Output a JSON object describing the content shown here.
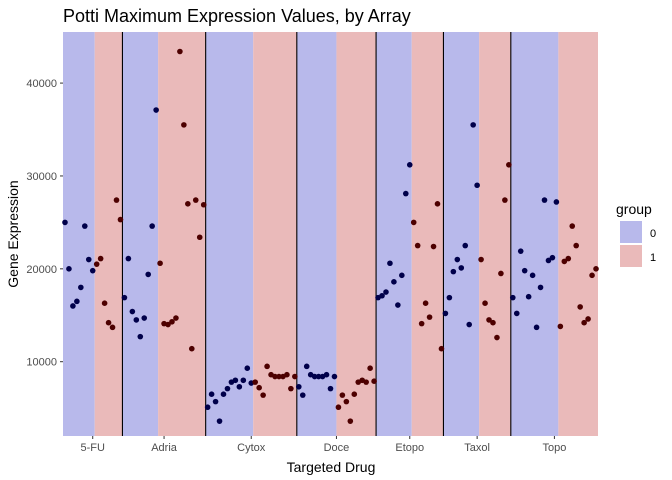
{
  "chart_data": {
    "type": "scatter",
    "title": "Potti Maximum Expression Values, by Array",
    "xlabel": "Targeted Drug",
    "ylabel": "Gene Expression",
    "ylim": [
      2000,
      45500
    ],
    "yticks": [
      10000,
      20000,
      30000,
      40000
    ],
    "grid": false,
    "legend": {
      "title": "group",
      "position": "right",
      "entries": [
        "0",
        "1"
      ]
    },
    "colors": {
      "group0_band": "#b8b9eb",
      "group1_band": "#eababa",
      "group0_point": "#00004a",
      "group1_point": "#4d0000",
      "separator": "#000000"
    },
    "categories": [
      {
        "name": "5-FU",
        "group0": [
          25000,
          20000,
          16000,
          16500,
          18000,
          24600,
          21000,
          19800
        ],
        "group1": [
          20500,
          21100,
          16300,
          14200,
          13700,
          27400,
          25300
        ]
      },
      {
        "name": "Adria",
        "group0": [
          16900,
          21100,
          15400,
          14500,
          12700,
          14700,
          19400,
          24600,
          37100
        ],
        "group1": [
          20600,
          14100,
          14000,
          14300,
          14700,
          43400,
          35500,
          27000,
          11400,
          27400,
          23400,
          26900
        ]
      },
      {
        "name": "Cytox",
        "group0": [
          5100,
          6500,
          5700,
          3600,
          6500,
          7100,
          7800,
          8000,
          7300,
          8000,
          9300,
          7700
        ],
        "group1": [
          7800,
          7200,
          6400,
          9500,
          8600,
          8400,
          8400,
          8400,
          8600,
          7100,
          8400
        ]
      },
      {
        "name": "Doce",
        "group0": [
          7300,
          6400,
          9500,
          8600,
          8400,
          8400,
          8400,
          8600,
          7100,
          8400
        ],
        "group1": [
          5100,
          6400,
          5700,
          3600,
          6500,
          7800,
          8000,
          7800,
          9300,
          7900
        ]
      },
      {
        "name": "Etopo",
        "group0": [
          16900,
          17100,
          17500,
          20600,
          18600,
          16100,
          19300,
          28100,
          31200
        ],
        "group1": [
          25000,
          22500,
          14100,
          16300,
          14800,
          22400,
          27000,
          11400
        ]
      },
      {
        "name": "Taxol",
        "group0": [
          15200,
          16900,
          19700,
          21000,
          20100,
          22500,
          14000,
          35500,
          29000
        ],
        "group1": [
          21000,
          16300,
          14500,
          14200,
          12600,
          19500,
          27400,
          31200
        ]
      },
      {
        "name": "Topo",
        "group0": [
          16900,
          15200,
          21900,
          19800,
          17000,
          19300,
          13700,
          18000,
          27400,
          20900,
          21200,
          27200
        ],
        "group1": [
          13800,
          20800,
          21100,
          24600,
          22500,
          15900,
          14200,
          14600,
          19300,
          20000
        ]
      }
    ]
  }
}
